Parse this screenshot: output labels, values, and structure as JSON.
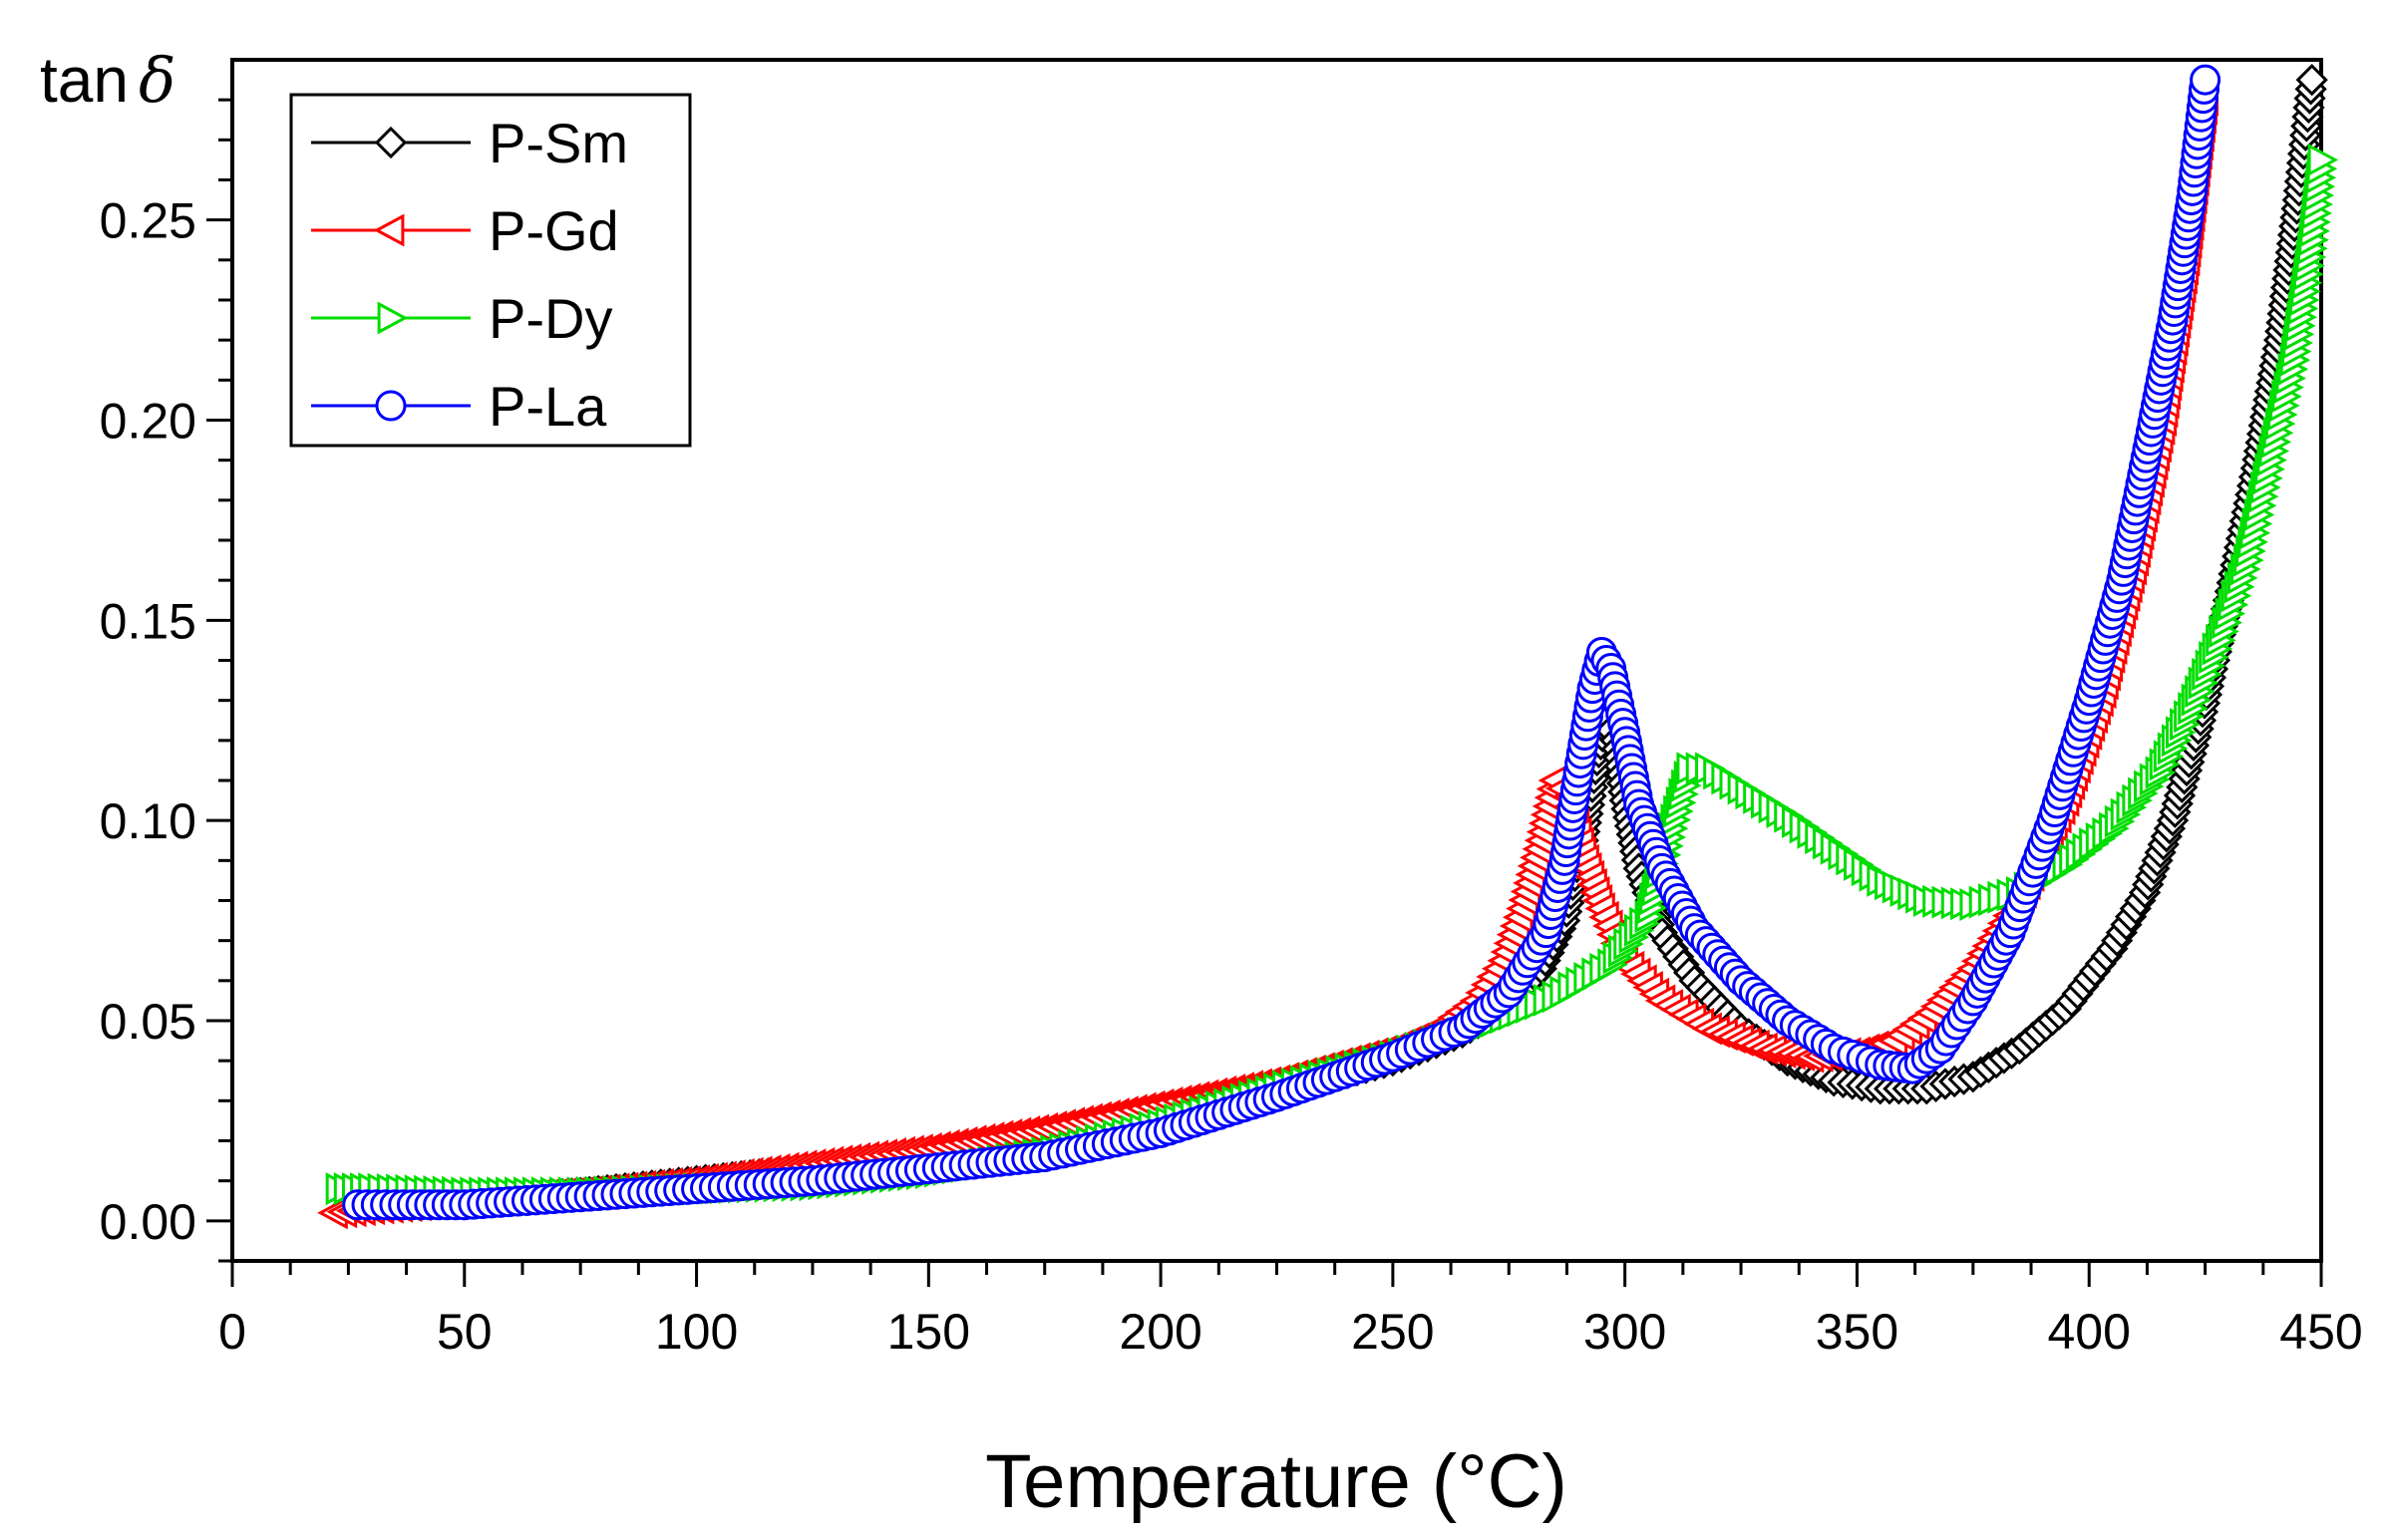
{
  "chart_data": {
    "type": "scatter",
    "title": "",
    "xlabel": "Temperature (°C)",
    "ylabel_text": "tan",
    "ylabel_symbol": "δ",
    "xlim": [
      0,
      450
    ],
    "ylim": [
      -0.01,
      0.29
    ],
    "x_ticks": [
      0,
      50,
      100,
      150,
      200,
      250,
      300,
      350,
      400,
      450
    ],
    "x_tick_labels": [
      "0",
      "50",
      "100",
      "150",
      "200",
      "250",
      "300",
      "350",
      "400",
      "450"
    ],
    "y_ticks": [
      0.0,
      0.05,
      0.1,
      0.15,
      0.2,
      0.25
    ],
    "y_tick_labels": [
      "0.00",
      "0.05",
      "0.10",
      "0.15",
      "0.20",
      "0.25"
    ],
    "grid": false,
    "legend_position": "top-left",
    "series": [
      {
        "name": "P-Sm",
        "color": "#000000",
        "marker": "diamond",
        "points": [
          [
            25,
            0.004
          ],
          [
            50,
            0.005
          ],
          [
            75,
            0.007
          ],
          [
            100,
            0.01
          ],
          [
            125,
            0.013
          ],
          [
            150,
            0.016
          ],
          [
            175,
            0.021
          ],
          [
            200,
            0.026
          ],
          [
            225,
            0.032
          ],
          [
            250,
            0.04
          ],
          [
            265,
            0.047
          ],
          [
            275,
            0.054
          ],
          [
            282,
            0.063
          ],
          [
            287,
            0.075
          ],
          [
            291,
            0.095
          ],
          [
            294,
            0.115
          ],
          [
            296,
            0.125
          ],
          [
            298,
            0.12
          ],
          [
            300,
            0.105
          ],
          [
            303,
            0.088
          ],
          [
            308,
            0.072
          ],
          [
            315,
            0.06
          ],
          [
            325,
            0.048
          ],
          [
            335,
            0.04
          ],
          [
            345,
            0.035
          ],
          [
            355,
            0.033
          ],
          [
            365,
            0.033
          ],
          [
            375,
            0.036
          ],
          [
            385,
            0.043
          ],
          [
            395,
            0.053
          ],
          [
            405,
            0.068
          ],
          [
            412,
            0.082
          ],
          [
            418,
            0.1
          ],
          [
            424,
            0.125
          ],
          [
            430,
            0.155
          ],
          [
            436,
            0.188
          ],
          [
            441,
            0.22
          ],
          [
            445,
            0.255
          ],
          [
            448,
            0.285
          ]
        ]
      },
      {
        "name": "P-Gd",
        "color": "#ff0000",
        "marker": "triangle-left",
        "points": [
          [
            22,
            0.002
          ],
          [
            30,
            0.003
          ],
          [
            50,
            0.005
          ],
          [
            75,
            0.007
          ],
          [
            100,
            0.01
          ],
          [
            125,
            0.014
          ],
          [
            150,
            0.018
          ],
          [
            175,
            0.023
          ],
          [
            200,
            0.029
          ],
          [
            225,
            0.035
          ],
          [
            250,
            0.043
          ],
          [
            260,
            0.048
          ],
          [
            268,
            0.055
          ],
          [
            274,
            0.065
          ],
          [
            278,
            0.078
          ],
          [
            282,
            0.095
          ],
          [
            285,
            0.11
          ],
          [
            288,
            0.106
          ],
          [
            291,
            0.092
          ],
          [
            295,
            0.078
          ],
          [
            300,
            0.065
          ],
          [
            308,
            0.055
          ],
          [
            318,
            0.048
          ],
          [
            330,
            0.043
          ],
          [
            340,
            0.041
          ],
          [
            350,
            0.042
          ],
          [
            358,
            0.045
          ],
          [
            366,
            0.052
          ],
          [
            375,
            0.063
          ],
          [
            385,
            0.08
          ],
          [
            395,
            0.105
          ],
          [
            403,
            0.132
          ],
          [
            410,
            0.165
          ],
          [
            416,
            0.2
          ],
          [
            421,
            0.24
          ],
          [
            425,
            0.28
          ]
        ]
      },
      {
        "name": "P-Dy",
        "color": "#00dd00",
        "marker": "triangle-right",
        "points": [
          [
            23,
            0.008
          ],
          [
            30,
            0.008
          ],
          [
            50,
            0.007
          ],
          [
            75,
            0.007
          ],
          [
            100,
            0.008
          ],
          [
            125,
            0.009
          ],
          [
            150,
            0.012
          ],
          [
            175,
            0.017
          ],
          [
            200,
            0.024
          ],
          [
            225,
            0.033
          ],
          [
            250,
            0.041
          ],
          [
            270,
            0.049
          ],
          [
            285,
            0.056
          ],
          [
            297,
            0.064
          ],
          [
            305,
            0.076
          ],
          [
            310,
            0.098
          ],
          [
            314,
            0.113
          ],
          [
            318,
            0.113
          ],
          [
            325,
            0.108
          ],
          [
            335,
            0.101
          ],
          [
            345,
            0.093
          ],
          [
            355,
            0.085
          ],
          [
            365,
            0.08
          ],
          [
            375,
            0.079
          ],
          [
            385,
            0.082
          ],
          [
            395,
            0.089
          ],
          [
            405,
            0.098
          ],
          [
            415,
            0.112
          ],
          [
            422,
            0.128
          ],
          [
            428,
            0.145
          ],
          [
            434,
            0.165
          ],
          [
            439,
            0.19
          ],
          [
            444,
            0.215
          ],
          [
            448,
            0.245
          ],
          [
            450,
            0.265
          ]
        ]
      },
      {
        "name": "P-La",
        "color": "#0000ff",
        "marker": "circle",
        "points": [
          [
            27,
            0.004
          ],
          [
            35,
            0.004
          ],
          [
            50,
            0.004
          ],
          [
            75,
            0.006
          ],
          [
            100,
            0.008
          ],
          [
            125,
            0.01
          ],
          [
            150,
            0.013
          ],
          [
            175,
            0.016
          ],
          [
            200,
            0.022
          ],
          [
            225,
            0.031
          ],
          [
            250,
            0.041
          ],
          [
            265,
            0.048
          ],
          [
            275,
            0.057
          ],
          [
            283,
            0.072
          ],
          [
            287,
            0.09
          ],
          [
            290,
            0.112
          ],
          [
            293,
            0.133
          ],
          [
            295,
            0.142
          ],
          [
            297,
            0.138
          ],
          [
            300,
            0.122
          ],
          [
            303,
            0.104
          ],
          [
            308,
            0.088
          ],
          [
            315,
            0.073
          ],
          [
            325,
            0.06
          ],
          [
            335,
            0.05
          ],
          [
            345,
            0.043
          ],
          [
            355,
            0.039
          ],
          [
            362,
            0.038
          ],
          [
            368,
            0.043
          ],
          [
            375,
            0.055
          ],
          [
            383,
            0.072
          ],
          [
            392,
            0.1
          ],
          [
            400,
            0.13
          ],
          [
            407,
            0.16
          ],
          [
            413,
            0.195
          ],
          [
            418,
            0.225
          ],
          [
            422,
            0.255
          ],
          [
            425,
            0.285
          ]
        ]
      }
    ]
  }
}
